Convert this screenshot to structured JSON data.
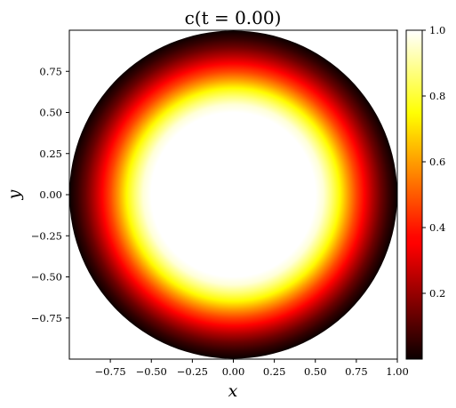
{
  "chart_data": {
    "type": "heatmap",
    "title": "c(t = 0.00)",
    "xlabel": "x",
    "ylabel": "y",
    "xlim": [
      -1.0,
      1.0
    ],
    "ylim": [
      -1.0,
      1.0
    ],
    "grid": false,
    "x_ticks": [
      -0.75,
      -0.5,
      -0.25,
      0.0,
      0.25,
      0.5,
      0.75,
      1.0
    ],
    "x_tick_labels": [
      "−0.75",
      "−0.50",
      "−0.25",
      "0.00",
      "0.25",
      "0.50",
      "0.75",
      "1.00"
    ],
    "y_ticks": [
      0.75,
      0.5,
      0.25,
      0.0,
      -0.25,
      -0.5,
      -0.75
    ],
    "y_tick_labels": [
      "0.75",
      "0.50",
      "0.25",
      "0.00",
      "−0.25",
      "−0.50",
      "−0.75"
    ],
    "domain": {
      "shape": "disk",
      "center": [
        0.0,
        0.0
      ],
      "radius": 1.0
    },
    "field": {
      "description": "radial field, saturated at max inside r<0.5 and decaying to ~0 at r=1",
      "r": [
        0.0,
        0.5,
        0.55,
        0.6,
        0.65,
        0.7,
        0.75,
        0.8,
        0.85,
        0.9,
        0.95,
        1.0
      ],
      "c": [
        1.0,
        1.0,
        0.96,
        0.86,
        0.74,
        0.6,
        0.47,
        0.36,
        0.24,
        0.14,
        0.06,
        0.0
      ]
    },
    "colorbar": {
      "colormap": "hot",
      "range": [
        0.0,
        1.0
      ],
      "ticks": [
        0.2,
        0.4,
        0.6,
        0.8,
        1.0
      ],
      "tick_labels": [
        "0.2",
        "0.4",
        "0.6",
        "0.8",
        "1.0"
      ]
    }
  }
}
